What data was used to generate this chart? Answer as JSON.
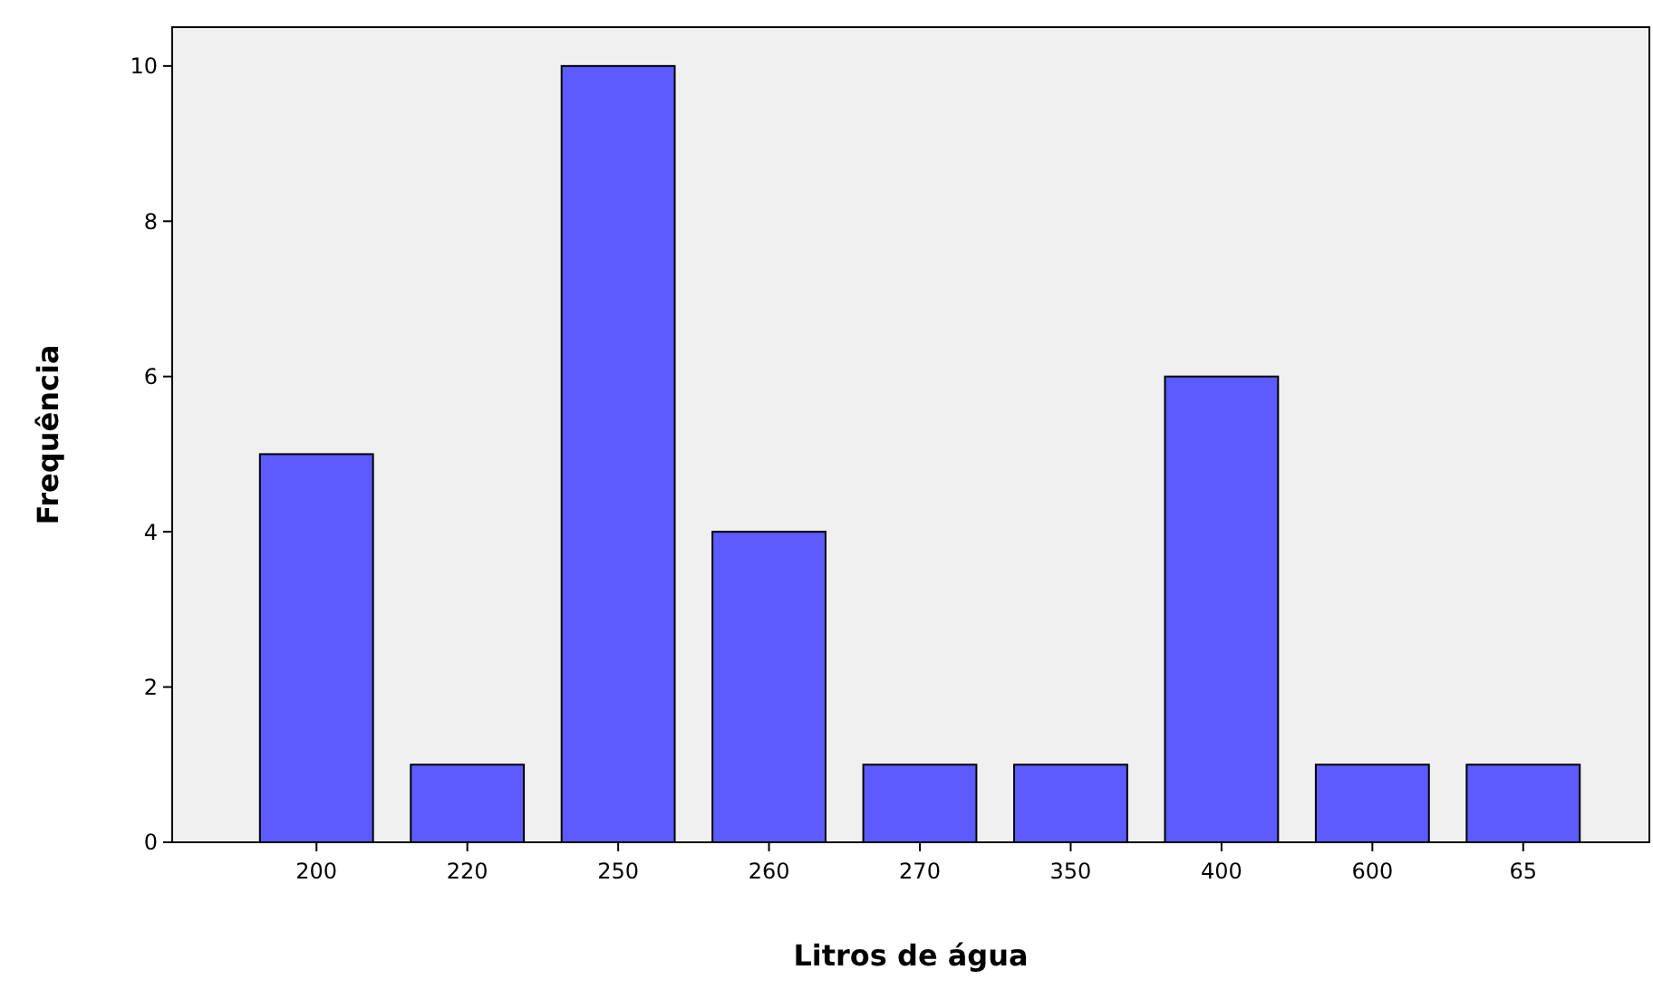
{
  "chart_data": {
    "type": "bar",
    "xlabel": "Litros de água",
    "ylabel": "Frequência",
    "categories": [
      "200",
      "220",
      "250",
      "260",
      "270",
      "350",
      "400",
      "600",
      "65"
    ],
    "values": [
      5,
      1,
      10,
      4,
      1,
      1,
      6,
      1,
      1
    ],
    "color": "#5b5bff",
    "ylim": [
      0,
      10.5
    ],
    "yticks": [
      0,
      2,
      4,
      6,
      8,
      10
    ],
    "grid": false
  }
}
